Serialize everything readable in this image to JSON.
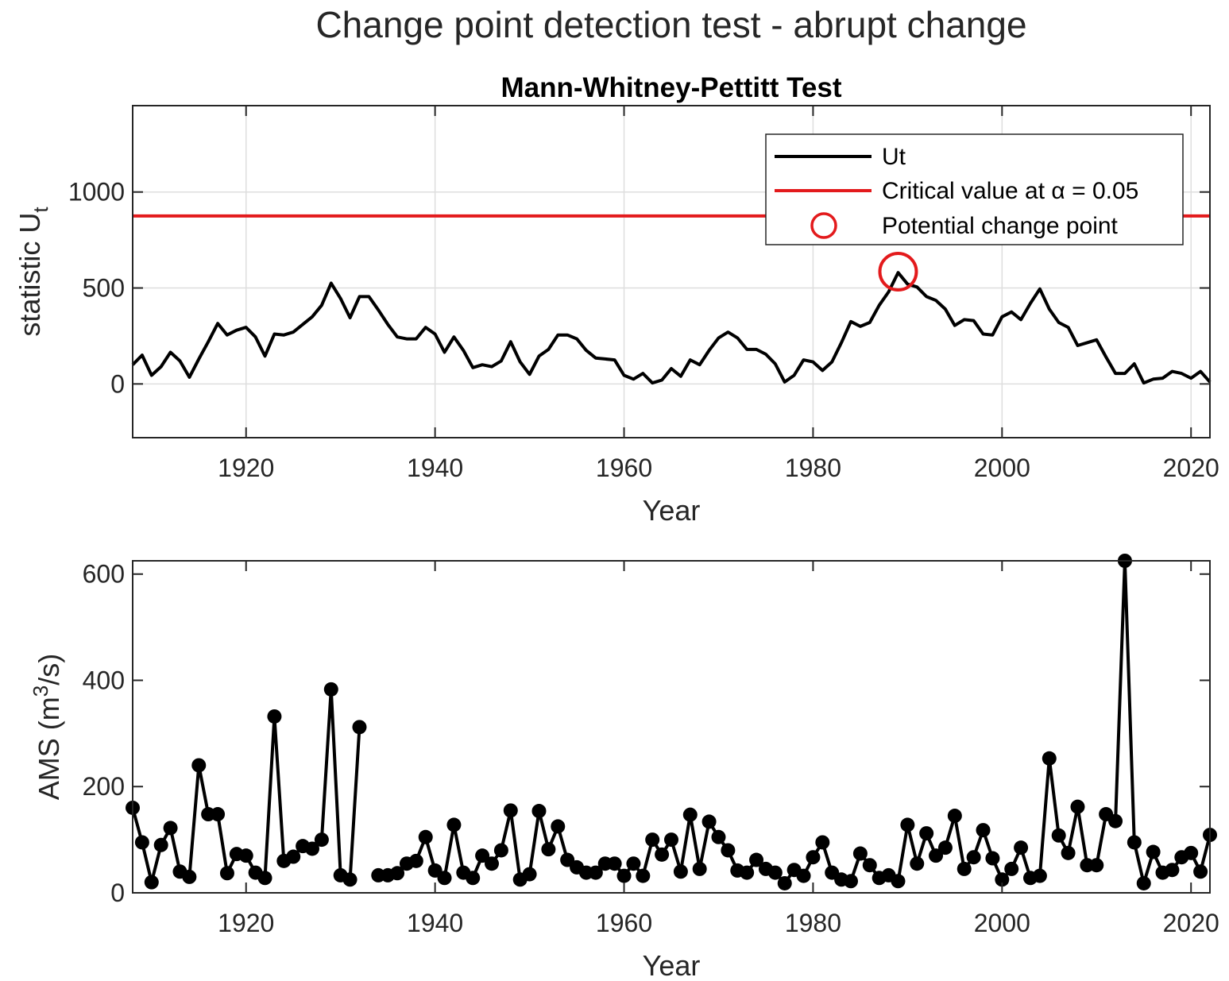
{
  "figure_title": "Change point detection test - abrupt change",
  "chart_data": [
    {
      "type": "line",
      "title": "Mann-Whitney-Pettitt Test",
      "xlabel": "Year",
      "ylabel_main": "statistic U",
      "ylabel_sub": "t",
      "xlim": [
        1908,
        2022
      ],
      "ylim": [
        -280,
        1450
      ],
      "xticks": [
        1920,
        1940,
        1960,
        1980,
        2000,
        2020
      ],
      "yticks": [
        0,
        500,
        1000
      ],
      "grid": true,
      "legend_position": "top-right",
      "series": [
        {
          "name": "Ut",
          "color": "#000000",
          "x": [
            1908,
            1909,
            1910,
            1911,
            1912,
            1913,
            1914,
            1915,
            1916,
            1917,
            1918,
            1919,
            1920,
            1921,
            1922,
            1923,
            1924,
            1925,
            1926,
            1927,
            1928,
            1929,
            1930,
            1931,
            1932,
            1933,
            1934,
            1935,
            1936,
            1937,
            1938,
            1939,
            1940,
            1941,
            1942,
            1943,
            1944,
            1945,
            1946,
            1947,
            1948,
            1949,
            1950,
            1951,
            1952,
            1953,
            1954,
            1955,
            1956,
            1957,
            1958,
            1959,
            1960,
            1961,
            1962,
            1963,
            1964,
            1965,
            1966,
            1967,
            1968,
            1969,
            1970,
            1971,
            1972,
            1973,
            1974,
            1975,
            1976,
            1977,
            1978,
            1979,
            1980,
            1981,
            1982,
            1983,
            1984,
            1985,
            1986,
            1987,
            1988,
            1989,
            1990,
            1991,
            1992,
            1993,
            1994,
            1995,
            1996,
            1997,
            1998,
            1999,
            2000,
            2001,
            2002,
            2003,
            2004,
            2005,
            2006,
            2007,
            2008,
            2009,
            2010,
            2011,
            2012,
            2013,
            2014,
            2015,
            2016,
            2017,
            2018,
            2019,
            2020,
            2021,
            2022
          ],
          "values": [
            100,
            150,
            45,
            90,
            165,
            120,
            35,
            130,
            220,
            315,
            255,
            280,
            295,
            245,
            145,
            260,
            255,
            270,
            310,
            350,
            410,
            525,
            445,
            345,
            455,
            455,
            385,
            310,
            245,
            235,
            235,
            295,
            260,
            165,
            245,
            175,
            85,
            100,
            90,
            120,
            220,
            115,
            50,
            145,
            180,
            255,
            255,
            235,
            175,
            135,
            130,
            125,
            45,
            25,
            55,
            5,
            20,
            80,
            40,
            125,
            100,
            175,
            240,
            270,
            240,
            180,
            180,
            155,
            105,
            10,
            45,
            125,
            115,
            70,
            115,
            215,
            325,
            300,
            320,
            410,
            480,
            580,
            520,
            505,
            455,
            435,
            390,
            305,
            335,
            330,
            260,
            255,
            350,
            375,
            335,
            420,
            495,
            390,
            320,
            295,
            200,
            215,
            230,
            140,
            55,
            55,
            105,
            5,
            25,
            30,
            65,
            55,
            30,
            65,
            10
          ]
        },
        {
          "name": "Critical value at α = 0.05",
          "color": "#e31a1c",
          "value": 875
        },
        {
          "name": "Potential change point",
          "color": "#e31a1c",
          "x": 1989,
          "y": 585
        }
      ]
    },
    {
      "type": "line",
      "title": "",
      "xlabel": "Year",
      "ylabel_main": "AMS (m",
      "ylabel_sup": "3",
      "ylabel_end": "/s)",
      "xlim": [
        1908,
        2022
      ],
      "ylim": [
        0,
        625
      ],
      "xticks": [
        1920,
        1940,
        1960,
        1980,
        2000,
        2020
      ],
      "yticks": [
        0,
        200,
        400,
        600
      ],
      "grid": false,
      "series": [
        {
          "name": "",
          "color": "#000000",
          "x": [
            1908,
            1909,
            1910,
            1911,
            1912,
            1913,
            1914,
            1915,
            1916,
            1917,
            1918,
            1919,
            1920,
            1921,
            1922,
            1923,
            1924,
            1925,
            1926,
            1927,
            1928,
            1929,
            1930,
            1931,
            1932,
            1933,
            1934,
            1935,
            1936,
            1937,
            1938,
            1939,
            1940,
            1941,
            1942,
            1943,
            1944,
            1945,
            1946,
            1947,
            1948,
            1949,
            1950,
            1951,
            1952,
            1953,
            1954,
            1955,
            1956,
            1957,
            1958,
            1959,
            1960,
            1961,
            1962,
            1963,
            1964,
            1965,
            1966,
            1967,
            1968,
            1969,
            1970,
            1971,
            1972,
            1973,
            1974,
            1975,
            1976,
            1977,
            1978,
            1979,
            1980,
            1981,
            1982,
            1983,
            1984,
            1985,
            1986,
            1987,
            1988,
            1989,
            1990,
            1991,
            1992,
            1993,
            1994,
            1995,
            1996,
            1997,
            1998,
            1999,
            2000,
            2001,
            2002,
            2003,
            2004,
            2005,
            2006,
            2007,
            2008,
            2009,
            2010,
            2011,
            2012,
            2013,
            2014,
            2015,
            2016,
            2017,
            2018,
            2019,
            2020,
            2021,
            2022
          ],
          "values": [
            160,
            95,
            20,
            90,
            122,
            40,
            30,
            240,
            148,
            148,
            37,
            73,
            70,
            38,
            28,
            332,
            60,
            68,
            88,
            83,
            100,
            383,
            33,
            25,
            312,
            null,
            33,
            33,
            37,
            55,
            60,
            105,
            42,
            28,
            128,
            38,
            28,
            70,
            55,
            80,
            155,
            25,
            35,
            154,
            82,
            125,
            62,
            48,
            38,
            38,
            55,
            55,
            32,
            55,
            32,
            100,
            72,
            100,
            40,
            147,
            45,
            134,
            105,
            80,
            42,
            38,
            62,
            45,
            38,
            18,
            43,
            32,
            67,
            95,
            38,
            25,
            22,
            74,
            52,
            28,
            33,
            22,
            128,
            55,
            112,
            70,
            85,
            145,
            45,
            67,
            118,
            65,
            25,
            45,
            85,
            28,
            32,
            253,
            108,
            75,
            162,
            52,
            52,
            148,
            135,
            625,
            95,
            18,
            77,
            38,
            43,
            67,
            75,
            40,
            109
          ]
        }
      ]
    }
  ]
}
